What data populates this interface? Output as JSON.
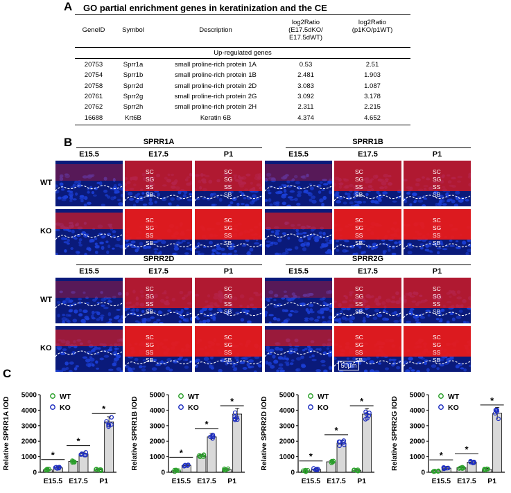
{
  "panels": {
    "a": "A",
    "b": "B",
    "c": "C"
  },
  "table": {
    "title": "GO partial enrichment genes in keratinization and the CE",
    "headers": [
      "GeneID",
      "Symbol",
      "Description",
      "log2Ratio\n(E17.5dKO/\nE17.5dWT)",
      "log2Ratio\n(p1KO/p1WT)"
    ],
    "section": "Up-regulated genes",
    "rows": [
      [
        "20753",
        "Sprr1a",
        "small proline-rich protein 1A",
        "0.53",
        "2.51"
      ],
      [
        "20754",
        "Sprr1b",
        "small proline-rich protein 1B",
        "2.481",
        "1.903"
      ],
      [
        "20758",
        "Sprr2d",
        "small proline-rich protein 2D",
        "3.083",
        "1.087"
      ],
      [
        "20761",
        "Sprr2g",
        "small proline-rich protein 2G",
        "3.092",
        "3.178"
      ],
      [
        "20762",
        "Sprr2h",
        "small proline-rich protein 2H",
        "2.311",
        "2.215"
      ],
      [
        "16688",
        "Krt6B",
        "Keratin 6B",
        "4.374",
        "4.652"
      ]
    ]
  },
  "images": {
    "groups": [
      "SPRR1A",
      "SPRR1B",
      "SPRR2D",
      "SPRR2G"
    ],
    "timepoints": [
      "E15.5",
      "E17.5",
      "P1"
    ],
    "rows": [
      "WT",
      "KO"
    ],
    "layers": [
      "SC",
      "SG",
      "SS",
      "SB"
    ],
    "scale_bar": "50μm",
    "colors": {
      "nuclei": "#1b3fd6",
      "stain": "#e81a1a",
      "background": "#0a1a7a"
    }
  },
  "chart_data": [
    {
      "type": "bar",
      "ylabel": "Relative SPRR1A IOD",
      "ylim": [
        0,
        5000
      ],
      "yticks": [
        0,
        1000,
        2000,
        3000,
        4000,
        5000
      ],
      "categories": [
        "E15.5",
        "E17.5",
        "P1"
      ],
      "series": [
        {
          "name": "WT",
          "values": [
            150,
            700,
            150
          ],
          "color": "#2ca02c"
        },
        {
          "name": "KO",
          "values": [
            280,
            1180,
            3250
          ],
          "color": "#1f2fbf"
        }
      ],
      "significance": [
        "*",
        "*",
        "*"
      ]
    },
    {
      "type": "bar",
      "ylabel": "Relative SPRR1B IOD",
      "ylim": [
        0,
        5000
      ],
      "yticks": [
        0,
        1000,
        2000,
        3000,
        4000,
        5000
      ],
      "categories": [
        "E15.5",
        "E17.5",
        "P1"
      ],
      "series": [
        {
          "name": "WT",
          "values": [
            90,
            1050,
            170
          ],
          "color": "#2ca02c"
        },
        {
          "name": "KO",
          "values": [
            430,
            2280,
            3750
          ],
          "color": "#1f2fbf"
        }
      ],
      "significance": [
        "*",
        "*",
        "*"
      ]
    },
    {
      "type": "bar",
      "ylabel": "Relative SPRR2D IOD",
      "ylim": [
        0,
        5000
      ],
      "yticks": [
        0,
        1000,
        2000,
        3000,
        4000,
        5000
      ],
      "categories": [
        "E15.5",
        "E17.5",
        "P1"
      ],
      "series": [
        {
          "name": "WT",
          "values": [
            90,
            670,
            130
          ],
          "color": "#2ca02c"
        },
        {
          "name": "KO",
          "values": [
            190,
            1880,
            3750
          ],
          "color": "#1f2fbf"
        }
      ],
      "significance": [
        "*",
        "*",
        "*"
      ]
    },
    {
      "type": "bar",
      "ylabel": "Relative SPRR2G IOD",
      "ylim": [
        0,
        5000
      ],
      "yticks": [
        0,
        1000,
        2000,
        3000,
        4000,
        5000
      ],
      "categories": [
        "E15.5",
        "E17.5",
        "P1"
      ],
      "series": [
        {
          "name": "WT",
          "values": [
            90,
            290,
            190
          ],
          "color": "#2ca02c"
        },
        {
          "name": "KO",
          "values": [
            260,
            650,
            3800
          ],
          "color": "#1f2fbf"
        }
      ],
      "significance": [
        "*",
        "*",
        "*"
      ]
    }
  ]
}
